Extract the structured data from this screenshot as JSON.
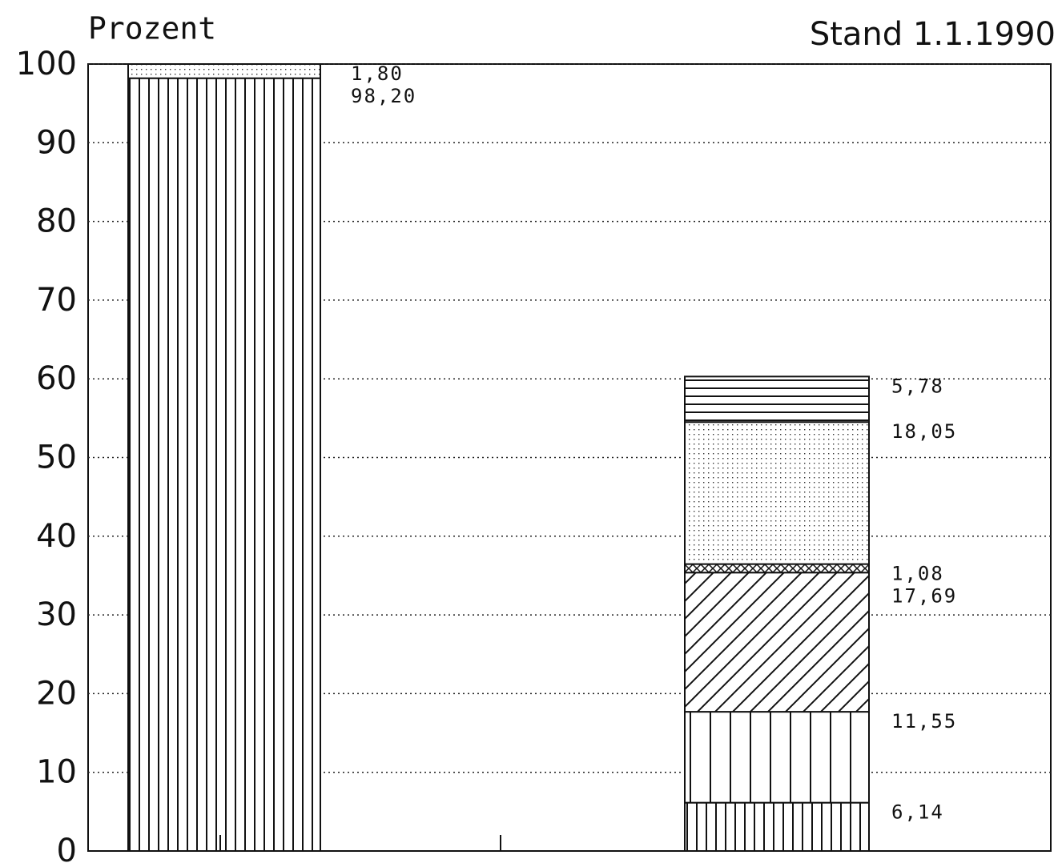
{
  "chart_data": {
    "type": "stacked_bar",
    "y_label": "Prozent",
    "annotation": "Stand 1.1.1990",
    "categories": [
      null,
      null
    ],
    "ylim": [
      0,
      100
    ],
    "yticks": [
      0,
      10,
      20,
      30,
      40,
      50,
      60,
      70,
      80,
      90,
      100
    ],
    "grid": true,
    "series": [
      {
        "pattern": "vdense",
        "color": "#111111",
        "values": [
          98.2,
          null
        ],
        "value_labels": [
          "98,20",
          null
        ]
      },
      {
        "pattern": "dots",
        "color": "#111111",
        "values": [
          1.8,
          null
        ],
        "value_labels": [
          "1,80",
          null
        ]
      },
      {
        "pattern": "vdense",
        "color": "#111111",
        "values": [
          null,
          6.14
        ],
        "value_labels": [
          null,
          "6,14"
        ]
      },
      {
        "pattern": "vsparse",
        "color": "#111111",
        "values": [
          null,
          11.55
        ],
        "value_labels": [
          null,
          "11,55"
        ]
      },
      {
        "pattern": "diag",
        "color": "#111111",
        "values": [
          null,
          17.69
        ],
        "value_labels": [
          null,
          "17,69"
        ]
      },
      {
        "pattern": "cross",
        "color": "#111111",
        "values": [
          null,
          1.08
        ],
        "value_labels": [
          null,
          "1,08"
        ]
      },
      {
        "pattern": "dots",
        "color": "#111111",
        "values": [
          null,
          18.05
        ],
        "value_labels": [
          null,
          "18,05"
        ]
      },
      {
        "pattern": "hlines",
        "color": "#111111",
        "values": [
          null,
          5.78
        ],
        "value_labels": [
          null,
          "5,78"
        ]
      }
    ]
  }
}
